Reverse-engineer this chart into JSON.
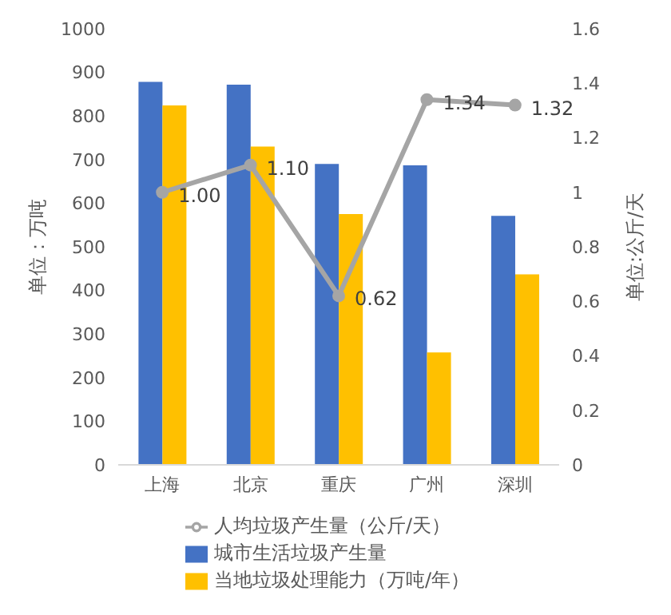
{
  "chart_data": {
    "type": "bar",
    "categories": [
      "上海",
      "北京",
      "重庆",
      "广州",
      "深圳"
    ],
    "series": [
      {
        "name": "城市生活垃圾产生量",
        "color": "#4472c4",
        "values": [
          878,
          872,
          690,
          687,
          571
        ]
      },
      {
        "name": "当地垃圾处理能力（万吨/年）",
        "color": "#ffc000",
        "values": [
          824,
          730,
          575,
          258,
          437
        ]
      },
      {
        "name": "人均垃圾产生量（公斤/天）",
        "type": "line",
        "axis": "y2",
        "color": "#a5a5a5",
        "values": [
          1.0,
          1.1,
          0.62,
          1.34,
          1.32
        ],
        "value_labels": [
          "1.00",
          "1.10",
          "0.62",
          "1.34",
          "1.32"
        ]
      }
    ],
    "ylabel": "单位：万吨",
    "y2label": "单位:公斤/天",
    "ylim": [
      0,
      1000
    ],
    "yticks": [
      0,
      100,
      200,
      300,
      400,
      500,
      600,
      700,
      800,
      900,
      1000
    ],
    "y2lim": [
      0,
      1.6
    ],
    "y2ticks": [
      0,
      0.2,
      0.4,
      0.6,
      0.8,
      1,
      1.2,
      1.4,
      1.6
    ],
    "grid": false,
    "legend": "bottom",
    "marker": "circle"
  }
}
